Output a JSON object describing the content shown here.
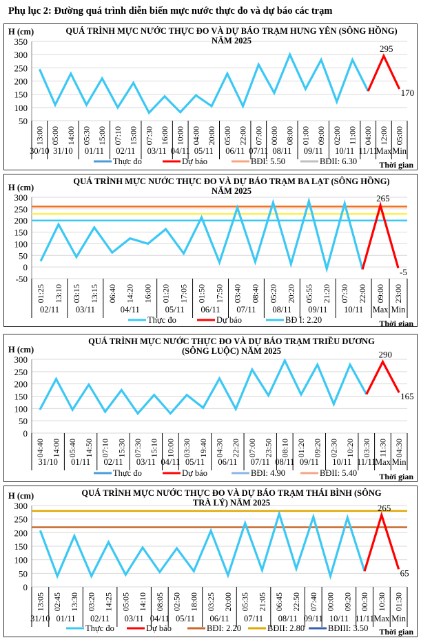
{
  "page_title": "Phụ lục 2: Đường quá trình diễn biến mực nước thực đo và dự báo các trạm",
  "colors": {
    "observed": "#3CC8F4",
    "forecast": "#FF0000",
    "grid": "#D9D9D9"
  },
  "chart_data": [
    {
      "type": "line",
      "title": [
        "QUÁ TRÌNH MỰC NƯỚC THỰC ĐO VÀ DỰ BÁO TRẠM HƯNG YÊN  (SÔNG HỒNG)",
        "NĂM 2025"
      ],
      "ylabel": "H (cm)",
      "xlabel": "Thời gian",
      "ylim": [
        50,
        350
      ],
      "yticks": [
        50,
        100,
        150,
        200,
        250,
        300,
        350
      ],
      "x": [
        "13:00",
        "05:00",
        "14:00",
        "05:30",
        "15:00",
        "07:10",
        "15:00",
        "07:30",
        "16:00",
        "10:00",
        "04:00",
        "20:00",
        "05:00",
        "22:00",
        "07:00",
        "00:00",
        "08:00",
        "01:00",
        "09:00",
        "02:00",
        "11:00",
        "04:00",
        "12:00",
        "05:00"
      ],
      "groups": [
        {
          "label": "30/10",
          "n": 1
        },
        {
          "label": "31/10",
          "n": 2
        },
        {
          "label": "01/11",
          "n": 2
        },
        {
          "label": "02/11",
          "n": 2
        },
        {
          "label": "03/11",
          "n": 2
        },
        {
          "label": "04/11",
          "n": 1
        },
        {
          "label": "05/11",
          "n": 2
        },
        {
          "label": "06/11",
          "n": 2
        },
        {
          "label": "07/11",
          "n": 1
        },
        {
          "label": "08/11",
          "n": 2
        },
        {
          "label": "09/11",
          "n": 2
        },
        {
          "label": "10/11",
          "n": 2
        },
        {
          "label": "11/11",
          "n": 1
        },
        {
          "label": "Max",
          "n": 1
        },
        {
          "label": "Min",
          "n": 1
        }
      ],
      "series": [
        {
          "name": "Thực đo",
          "values": [
            245,
            110,
            228,
            110,
            210,
            100,
            193,
            80,
            142,
            82,
            146,
            105,
            228,
            105,
            262,
            155,
            300,
            170,
            280,
            122,
            280,
            162,
            null,
            null
          ],
          "color": "#3CC8F4"
        },
        {
          "name": "Dự báo",
          "values": [
            null,
            null,
            null,
            null,
            null,
            null,
            null,
            null,
            null,
            null,
            null,
            null,
            null,
            null,
            null,
            null,
            null,
            null,
            null,
            null,
            null,
            162,
            295,
            170
          ],
          "color": "#FF0000"
        }
      ],
      "point_labels": [
        {
          "index": 22,
          "text": "295"
        },
        {
          "index": 23,
          "text": "170"
        }
      ],
      "ref_lines": [],
      "legend": [
        {
          "name": "Thực đo",
          "color": "#4A9BD8"
        },
        {
          "name": "Dự báo",
          "color": "#FF0000"
        },
        {
          "name": "BĐI: 5.50",
          "color": "#F4A582"
        },
        {
          "name": "BĐII: 6.30",
          "color": "#BFBFBF"
        }
      ],
      "grid": true,
      "legend_position": "bottom"
    },
    {
      "type": "line",
      "title": [
        "QUÁ TRÌNH MỰC NƯỚC THỰC ĐO VÀ DỰ BÁO TRẠM BA LẠT (SÔNG HỒNG)",
        "NĂM 2025"
      ],
      "ylabel": "H (cm)",
      "xlabel": "Thời gian",
      "ylim": [
        -50,
        300
      ],
      "yticks": [
        -50,
        0,
        50,
        100,
        150,
        200,
        250,
        300
      ],
      "x": [
        "01:25",
        "13:10",
        "03:15",
        "13:15",
        "06:40",
        "14:20",
        "16:00",
        "01:20",
        "17:05",
        "01:50",
        "17:50",
        "03:40",
        "08:40",
        "05:20",
        "20:20",
        "05:55",
        "21:20",
        "07:30",
        "22:00",
        "09:00",
        "23:00"
      ],
      "groups": [
        {
          "label": "02/11",
          "n": 2
        },
        {
          "label": "03/11",
          "n": 2
        },
        {
          "label": "04/11",
          "n": 3
        },
        {
          "label": "05/11",
          "n": 2
        },
        {
          "label": "06/11",
          "n": 2
        },
        {
          "label": "07/11",
          "n": 2
        },
        {
          "label": "08/11",
          "n": 2
        },
        {
          "label": "09/11",
          "n": 2
        },
        {
          "label": "10/11",
          "n": 2
        },
        {
          "label": "Max",
          "n": 1
        },
        {
          "label": "Min",
          "n": 1
        }
      ],
      "series": [
        {
          "name": "Thực đo",
          "values": [
            25,
            183,
            43,
            170,
            62,
            123,
            100,
            163,
            58,
            213,
            20,
            255,
            22,
            277,
            13,
            283,
            -8,
            273,
            -10,
            null,
            null
          ],
          "color": "#3CC8F4"
        },
        {
          "name": "Dự báo",
          "values": [
            null,
            null,
            null,
            null,
            null,
            null,
            null,
            null,
            null,
            null,
            null,
            null,
            null,
            null,
            null,
            null,
            null,
            null,
            -10,
            265,
            -5
          ],
          "color": "#FF0000"
        }
      ],
      "point_labels": [
        {
          "index": 19,
          "text": "265"
        },
        {
          "index": 20,
          "text": "-5"
        }
      ],
      "ref_lines": [
        {
          "value": 200,
          "color": "#3CC8F4"
        },
        {
          "value": 228,
          "color": "#FFF04D"
        },
        {
          "value": 260,
          "color": "#F07020"
        }
      ],
      "legend": [
        {
          "name": "Thực đo",
          "color": "#3CC8F4"
        },
        {
          "name": "Dự báo",
          "color": "#FF0000"
        },
        {
          "name": "BĐ I: 2.20",
          "color": "#3CC8F4"
        }
      ],
      "grid": true,
      "legend_position": "bottom"
    },
    {
      "type": "line",
      "title": [
        "QUÁ TRÌNH MỰC NƯỚC THỰC ĐO VÀ DỰ BÁO TRẠM  TRIỀU DƯƠNG",
        "(SÔNG  LUỘC) NĂM 2025"
      ],
      "ylabel": "H (cm)",
      "xlabel": "Thời gian",
      "ylim": [
        0,
        300
      ],
      "yticks": [
        0,
        50,
        100,
        150,
        200,
        250,
        300
      ],
      "x": [
        "04:40",
        "14:00",
        "05:40",
        "14:50",
        "07:10",
        "15:30",
        "07:30",
        "15:10",
        "10:00",
        "03:30",
        "19:40",
        "04:30",
        "22:20",
        "07:00",
        "23:50",
        "08:10",
        "01:20",
        "09:20",
        "02:30",
        "10:20",
        "03:30",
        "11:30",
        "04:30"
      ],
      "groups": [
        {
          "label": "31/10",
          "n": 2
        },
        {
          "label": "01/11",
          "n": 2
        },
        {
          "label": "02/11",
          "n": 2
        },
        {
          "label": "03/11",
          "n": 2
        },
        {
          "label": "04/11",
          "n": 1
        },
        {
          "label": "05/11",
          "n": 2
        },
        {
          "label": "06/11",
          "n": 2
        },
        {
          "label": "07/11",
          "n": 2
        },
        {
          "label": "08/11",
          "n": 1
        },
        {
          "label": "09/11",
          "n": 2
        },
        {
          "label": "10/11",
          "n": 2
        },
        {
          "label": "11/11",
          "n": 1
        },
        {
          "label": "Max",
          "n": 1
        },
        {
          "label": "Min",
          "n": 1
        }
      ],
      "series": [
        {
          "name": "Thực đo",
          "values": [
            95,
            220,
            95,
            197,
            87,
            175,
            80,
            155,
            80,
            155,
            103,
            222,
            98,
            258,
            153,
            295,
            157,
            278,
            118,
            278,
            158,
            null,
            null
          ],
          "color": "#3CC8F4"
        },
        {
          "name": "Dự báo",
          "values": [
            null,
            null,
            null,
            null,
            null,
            null,
            null,
            null,
            null,
            null,
            null,
            null,
            null,
            null,
            null,
            null,
            null,
            null,
            null,
            null,
            158,
            290,
            165
          ],
          "color": "#FF0000"
        }
      ],
      "point_labels": [
        {
          "index": 21,
          "text": "290"
        },
        {
          "index": 22,
          "text": "165"
        }
      ],
      "ref_lines": [],
      "legend": [
        {
          "name": "Thực đo",
          "color": "#4A9BD8"
        },
        {
          "name": "Dự báo",
          "color": "#FF0000"
        },
        {
          "name": "BĐI: 4.90",
          "color": "#8DB4E2"
        },
        {
          "name": "BĐII: 5.40",
          "color": "#F4A582"
        }
      ],
      "grid": true,
      "legend_position": "bottom"
    },
    {
      "type": "line",
      "title": [
        "QUÁ TRÌNH MỰC NƯỚC THỰC ĐO VÀ DỰ BÁO TRẠM THÁI BÌNH (SÔNG",
        "TRÀ LÝ) NĂM 2025"
      ],
      "ylabel": "H (cm)",
      "xlabel": "Thời gian",
      "ylim": [
        0,
        300
      ],
      "yticks": [
        0,
        50,
        100,
        150,
        200,
        250,
        300
      ],
      "x": [
        "13:05",
        "02:45",
        "13:30",
        "03:20",
        "14:25",
        "05:05",
        "14:10",
        "08:05",
        "02:50",
        "18:00",
        "03:25",
        "20:00",
        "05:35",
        "21:05",
        "06:45",
        "22:50",
        "07:40",
        "00:00",
        "09:20",
        "00:30",
        "10:30",
        "01:30"
      ],
      "groups": [
        {
          "label": "31/10",
          "n": 1
        },
        {
          "label": "01/11",
          "n": 2
        },
        {
          "label": "02/11",
          "n": 2
        },
        {
          "label": "03/11",
          "n": 2
        },
        {
          "label": "04/11",
          "n": 1
        },
        {
          "label": "05/11",
          "n": 2
        },
        {
          "label": "06/11",
          "n": 2
        },
        {
          "label": "07/11",
          "n": 2
        },
        {
          "label": "08/11",
          "n": 2
        },
        {
          "label": "09/11",
          "n": 1
        },
        {
          "label": "10/11",
          "n": 2
        },
        {
          "label": "11/11",
          "n": 1
        },
        {
          "label": "Max",
          "n": 1
        },
        {
          "label": "Min",
          "n": 1
        }
      ],
      "series": [
        {
          "name": "Thực đo",
          "values": [
            208,
            40,
            188,
            40,
            165,
            45,
            145,
            55,
            142,
            58,
            207,
            43,
            235,
            62,
            270,
            67,
            258,
            40,
            255,
            58,
            null,
            null
          ],
          "color": "#3CC8F4"
        },
        {
          "name": "Dự báo",
          "values": [
            null,
            null,
            null,
            null,
            null,
            null,
            null,
            null,
            null,
            null,
            null,
            null,
            null,
            null,
            null,
            null,
            null,
            null,
            null,
            58,
            265,
            65
          ],
          "color": "#FF0000"
        }
      ],
      "point_labels": [
        {
          "index": 20,
          "text": "265"
        },
        {
          "index": 21,
          "text": "65"
        }
      ],
      "ref_lines": [
        {
          "value": 220,
          "color": "#C8692A"
        },
        {
          "value": 280,
          "color": "#E0A800"
        }
      ],
      "legend": [
        {
          "name": "Thực đo",
          "color": "#3CC8F4"
        },
        {
          "name": "Dự báo",
          "color": "#FF0000"
        },
        {
          "name": "BĐI: 2.20",
          "color": "#C8692A"
        },
        {
          "name": "BĐII: 2.80",
          "color": "#E0A800"
        },
        {
          "name": "BĐIII: 3.50",
          "color": "#3A5FB0"
        }
      ],
      "grid": true,
      "legend_position": "bottom"
    }
  ]
}
